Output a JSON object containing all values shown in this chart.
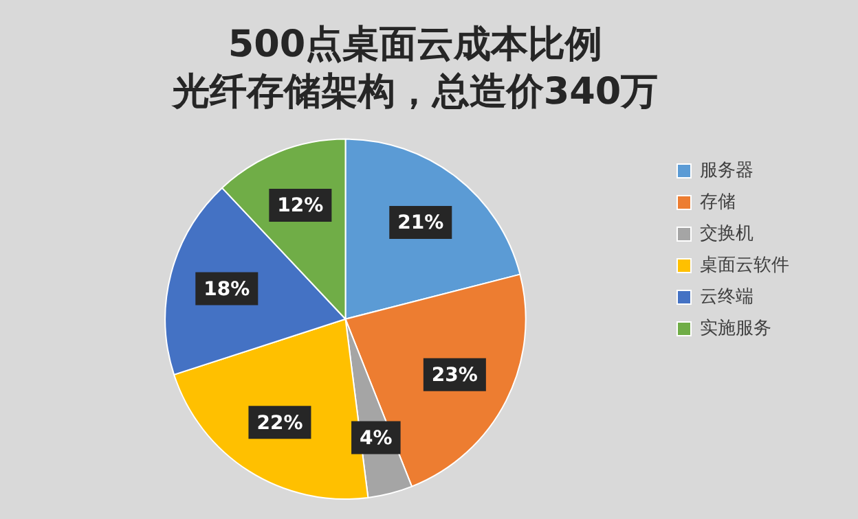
{
  "chart_data": {
    "type": "pie",
    "title": "500点桌面云成本比例",
    "subtitle": "光纤存储架构，总造价340万",
    "categories": [
      "服务器",
      "存储",
      "交换机",
      "桌面云软件",
      "云终端",
      "实施服务"
    ],
    "values": [
      21,
      23,
      4,
      22,
      18,
      12
    ],
    "colors": [
      "#5b9bd5",
      "#ed7d31",
      "#a5a5a5",
      "#ffc000",
      "#4472c4",
      "#70ad47"
    ],
    "value_labels": [
      "21%",
      "23%",
      "4%",
      "22%",
      "18%",
      "12%"
    ],
    "legend": "right"
  }
}
